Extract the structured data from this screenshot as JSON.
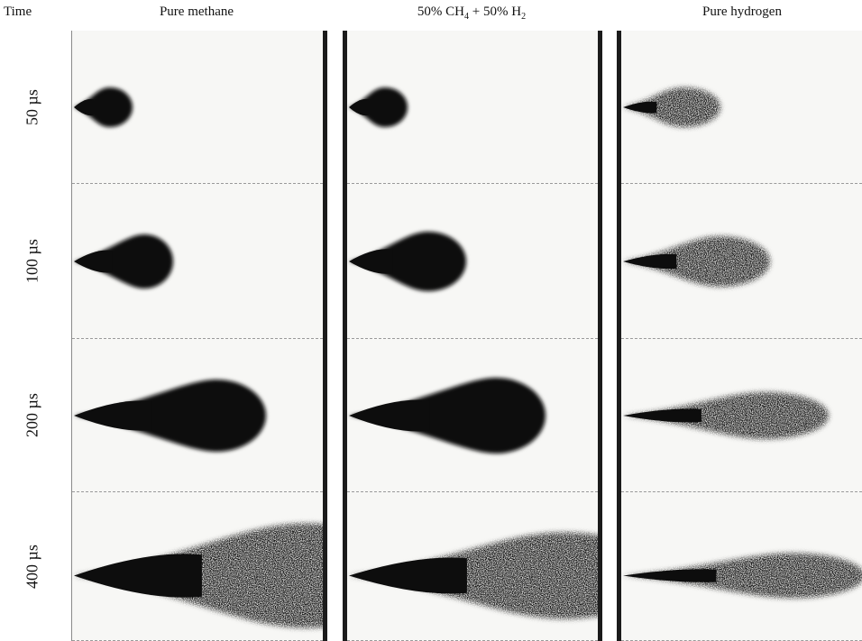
{
  "header": {
    "time_label": "Time",
    "columns": [
      {
        "title": "Pure methane",
        "title_html": "Pure methane"
      },
      {
        "title": "50% CH4 + 50% H2",
        "title_html": "50% CH<sub style=\"font-size:10px\">4</sub> + 50% H<sub style=\"font-size:10px\">2</sub>"
      },
      {
        "title": "Pure hydrogen",
        "title_html": "Pure hydrogen"
      }
    ]
  },
  "rows": [
    {
      "label": "50 µs"
    },
    {
      "label": "100 µs"
    },
    {
      "label": "200 µs"
    },
    {
      "label": "400 µs"
    }
  ],
  "jet_color": "#0d0d0d",
  "background_color": "#f7f7f5"
}
